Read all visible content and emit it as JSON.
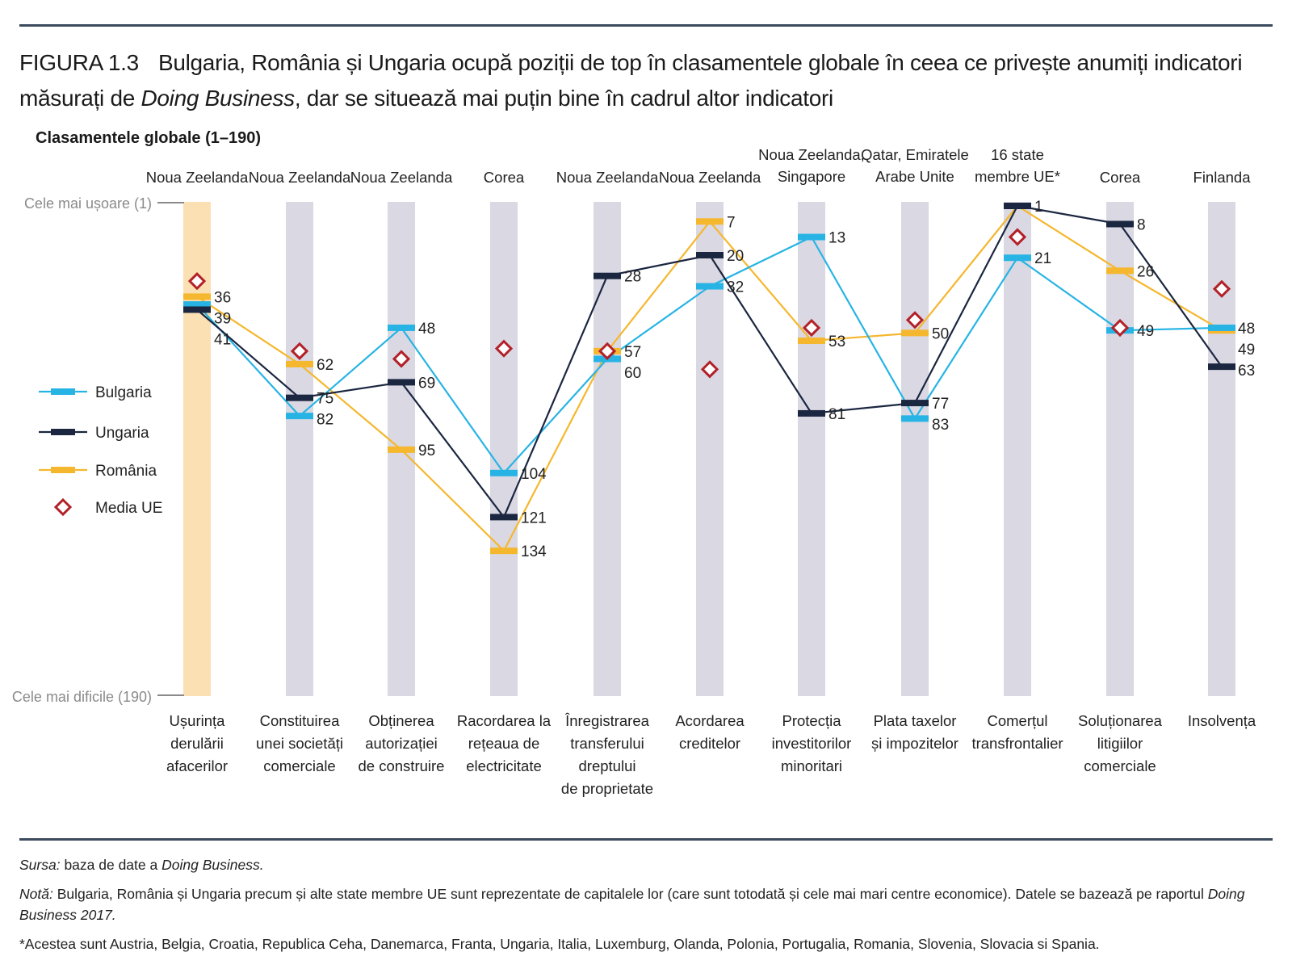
{
  "figure": {
    "number": "FIGURA 1.3",
    "title_line1": "Bulgaria, România și Ungaria ocupă poziții de top în clasamentele globale în ceea ce privește anumiți indicatori",
    "title_line2_a": "măsurați de ",
    "title_line2_em": "Doing Business",
    "title_line2_b": ", dar se situează mai puțin bine în cadrul altor indicatori"
  },
  "colors": {
    "bulgaria": "#27b4e4",
    "ungaria": "#1b2640",
    "romania": "#f5b72e",
    "eu": "#b32028",
    "column": "#d9d8e3",
    "column_highlight": "#fbe0b3"
  },
  "chart_data": {
    "type": "line",
    "title": "Clasamentele globale (1–190)",
    "ylim": [
      1,
      190
    ],
    "y_top_label": "Cele mai ușoare (1)",
    "y_bottom_label": "Cele mai dificile (190)",
    "categories": [
      [
        "Ușurința",
        "derulării",
        "afacerilor"
      ],
      [
        "Constituirea",
        "unei societăți",
        "comerciale"
      ],
      [
        "Obținerea",
        "autorizației",
        "de construire"
      ],
      [
        "Racordarea la",
        "rețeaua de",
        "electricitate"
      ],
      [
        "Înregistrarea",
        "transferului",
        "dreptului",
        "de proprietate"
      ],
      [
        "Acordarea",
        "creditelor"
      ],
      [
        "Protecția",
        "investitorilor",
        "minoritari"
      ],
      [
        "Plata taxelor",
        "și impozitelor"
      ],
      [
        "Comerțul",
        "transfrontalier"
      ],
      [
        "Soluționarea",
        "litigiilor",
        "comerciale"
      ],
      [
        "Insolvența"
      ]
    ],
    "leaders": [
      [
        "Noua Zeelanda"
      ],
      [
        "Noua Zeelanda"
      ],
      [
        "Noua Zeelanda"
      ],
      [
        "Corea"
      ],
      [
        "Noua Zeelanda"
      ],
      [
        "Noua Zeelanda"
      ],
      [
        "Noua Zeelanda,",
        "Singapore"
      ],
      [
        "Qatar, Emiratele",
        "Arabe Unite"
      ],
      [
        "16 state",
        "membre UE*"
      ],
      [
        "Corea"
      ],
      [
        "Finlanda"
      ]
    ],
    "series": [
      {
        "name": "Bulgaria",
        "key": "bulgaria",
        "values": [
          39,
          82,
          48,
          104,
          60,
          32,
          13,
          83,
          21,
          49,
          48
        ]
      },
      {
        "name": "Ungaria",
        "key": "ungaria",
        "values": [
          41,
          75,
          69,
          121,
          28,
          20,
          81,
          77,
          1,
          8,
          63
        ]
      },
      {
        "name": "România",
        "key": "romania",
        "values": [
          36,
          62,
          95,
          134,
          57,
          7,
          53,
          50,
          1,
          26,
          49
        ]
      }
    ],
    "eu_average": {
      "name": "Media UE",
      "values": [
        30,
        57,
        60,
        56,
        57,
        64,
        48,
        45,
        13,
        48,
        33
      ]
    },
    "labels": [
      [
        "36",
        "39",
        "41"
      ],
      [
        "62",
        "75",
        "82"
      ],
      [
        "48",
        "69",
        "95"
      ],
      [
        "104",
        "121",
        "134"
      ],
      [
        "28",
        "57",
        "60"
      ],
      [
        "7",
        "20",
        "32"
      ],
      [
        "13",
        "53",
        "81"
      ],
      [
        "50",
        "77",
        "83"
      ],
      [
        "1",
        "21"
      ],
      [
        "8",
        "26",
        "49"
      ],
      [
        "48",
        "49",
        "63"
      ]
    ],
    "legend": [
      "Bulgaria",
      "Ungaria",
      "România",
      "Media UE"
    ],
    "legend_position": "left"
  },
  "notes": {
    "source_label": "Sursa:",
    "source_text": " baza de date a ",
    "source_em": "Doing Business.",
    "note_label": "Notă:",
    "note_text": " Bulgaria, România și Ungaria precum și alte state membre UE sunt reprezentate de capitalele lor (care sunt totodată și cele mai mari centre economice). Datele se bazează pe raportul ",
    "note_em": "Doing Business 2017.",
    "footnote": "*Acestea sunt Austria, Belgia, Croatia, Republica Ceha, Danemarca, Franta, Ungaria, Italia, Luxemburg, Olanda, Polonia, Portugalia, Romania, Slovenia, Slovacia si Spania."
  }
}
